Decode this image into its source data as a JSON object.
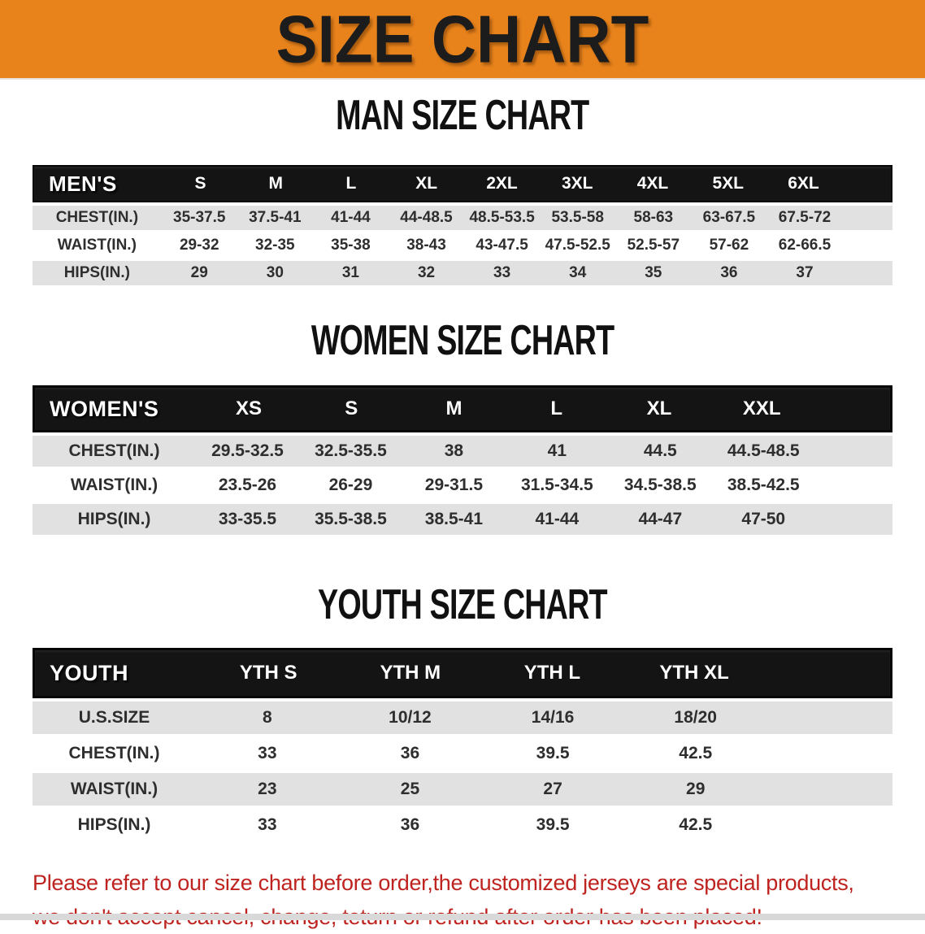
{
  "banner": {
    "title": "SIZE CHART"
  },
  "colors": {
    "banner_bg": "#E8831C",
    "header_bg": "#141414",
    "row_shaded": "#E1E1E1",
    "disclaimer": "#BE231F"
  },
  "tables": {
    "men": {
      "heading": "MAN SIZE CHART",
      "label": "MEN'S",
      "sizes": [
        "S",
        "M",
        "L",
        "XL",
        "2XL",
        "3XL",
        "4XL",
        "5XL",
        "6XL"
      ],
      "rows": [
        {
          "label": "CHEST(IN.)",
          "shaded": true,
          "values": [
            "35-37.5",
            "37.5-41",
            "41-44",
            "44-48.5",
            "48.5-53.5",
            "53.5-58",
            "58-63",
            "63-67.5",
            "67.5-72"
          ]
        },
        {
          "label": "WAIST(IN.)",
          "shaded": false,
          "values": [
            "29-32",
            "32-35",
            "35-38",
            "38-43",
            "43-47.5",
            "47.5-52.5",
            "52.5-57",
            "57-62",
            "62-66.5"
          ]
        },
        {
          "label": "HIPS(IN.)",
          "shaded": true,
          "values": [
            "29",
            "30",
            "31",
            "32",
            "33",
            "34",
            "35",
            "36",
            "37"
          ]
        }
      ]
    },
    "women": {
      "heading": "WOMEN SIZE CHART",
      "label": "WOMEN'S",
      "sizes": [
        "XS",
        "S",
        "M",
        "L",
        "XL",
        "XXL"
      ],
      "rows": [
        {
          "label": "CHEST(IN.)",
          "shaded": true,
          "values": [
            "29.5-32.5",
            "32.5-35.5",
            "38",
            "41",
            "44.5",
            "44.5-48.5"
          ]
        },
        {
          "label": "WAIST(IN.)",
          "shaded": false,
          "values": [
            "23.5-26",
            "26-29",
            "29-31.5",
            "31.5-34.5",
            "34.5-38.5",
            "38.5-42.5"
          ]
        },
        {
          "label": "HIPS(IN.)",
          "shaded": true,
          "values": [
            "33-35.5",
            "35.5-38.5",
            "38.5-41",
            "41-44",
            "44-47",
            "47-50"
          ]
        }
      ]
    },
    "youth": {
      "heading": "YOUTH SIZE CHART",
      "label": "YOUTH",
      "sizes": [
        "YTH S",
        "YTH M",
        "YTH L",
        "YTH XL"
      ],
      "rows": [
        {
          "label": "U.S.SIZE",
          "shaded": true,
          "values": [
            "8",
            "10/12",
            "14/16",
            "18/20"
          ]
        },
        {
          "label": "CHEST(IN.)",
          "shaded": false,
          "values": [
            "33",
            "36",
            "39.5",
            "42.5"
          ]
        },
        {
          "label": "WAIST(IN.)",
          "shaded": true,
          "values": [
            "23",
            "25",
            "27",
            "29"
          ]
        },
        {
          "label": "HIPS(IN.)",
          "shaded": false,
          "values": [
            "33",
            "36",
            "39.5",
            "42.5"
          ]
        }
      ]
    }
  },
  "disclaimer": {
    "lines": [
      "Please refer to our size chart before order,the customized jerseys are special products,",
      "we don't accept cancel, change, teturn or refund after order has been placed!"
    ]
  }
}
